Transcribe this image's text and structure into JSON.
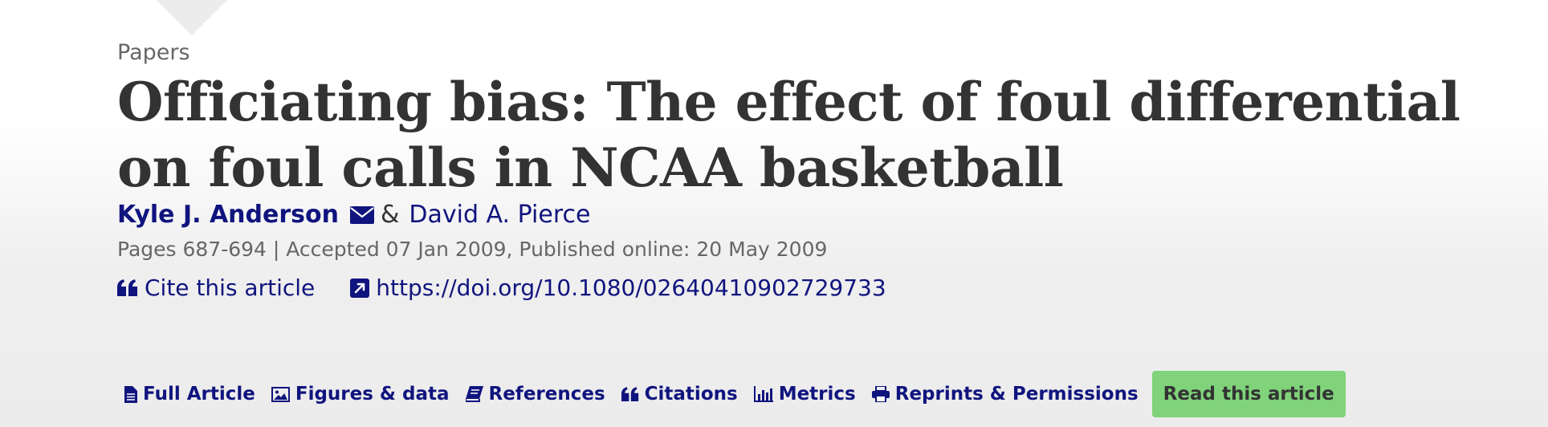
{
  "kicker": "Papers",
  "title": "Officiating bias: The effect of foul differential on foul calls in NCAA basketball",
  "authors": {
    "first": "Kyle J. Anderson",
    "separator": "&",
    "second": "David A. Pierce"
  },
  "meta": "Pages 687-694 | Accepted 07 Jan 2009, Published online: 20 May 2009",
  "links": {
    "cite": "Cite this article",
    "doi": "https://doi.org/10.1080/02640410902729733"
  },
  "tabs": [
    {
      "label": "Full Article",
      "icon": "document-icon"
    },
    {
      "label": "Figures & data",
      "icon": "image-icon"
    },
    {
      "label": "References",
      "icon": "book-icon"
    },
    {
      "label": "Citations",
      "icon": "quote-icon"
    },
    {
      "label": "Metrics",
      "icon": "bar-chart-icon"
    },
    {
      "label": "Reprints & Permissions",
      "icon": "print-icon"
    }
  ],
  "cta": "Read this article",
  "colors": {
    "link": "#10147e",
    "cta": "#80d37a",
    "text": "#333333",
    "muted": "#666666"
  }
}
